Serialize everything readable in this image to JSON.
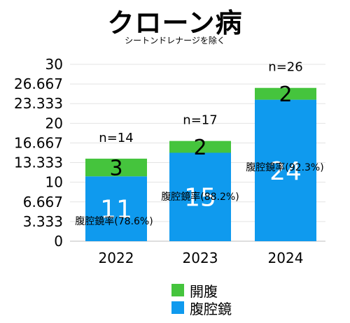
{
  "chart_data": {
    "type": "bar",
    "stacked": true,
    "title": "クローン病",
    "subtitle": "シートンドレナージを除く",
    "categories": [
      "2022",
      "2023",
      "2024"
    ],
    "y_ticks": [
      "0",
      "3.333",
      "6.667",
      "10",
      "13.333",
      "16.667",
      "20",
      "23.333",
      "26.667",
      "30"
    ],
    "ylim": [
      0,
      30
    ],
    "grid": true,
    "legend_placement": "bottom-center",
    "series": [
      {
        "name": "腹腔鏡",
        "values": [
          11,
          15,
          24
        ],
        "color": "#0f9aee"
      },
      {
        "name": "開腹",
        "values": [
          3,
          2,
          2
        ],
        "color": "#45c43d"
      }
    ],
    "totals": [
      "n=14",
      "n=17",
      "n=26"
    ],
    "rate_labels": [
      "腹腔鏡率(78.6%)",
      "腹腔鏡率(88.2%)",
      "腹腔鏡率(92.3%)"
    ],
    "legend_order": [
      "開腹",
      "腹腔鏡"
    ]
  }
}
